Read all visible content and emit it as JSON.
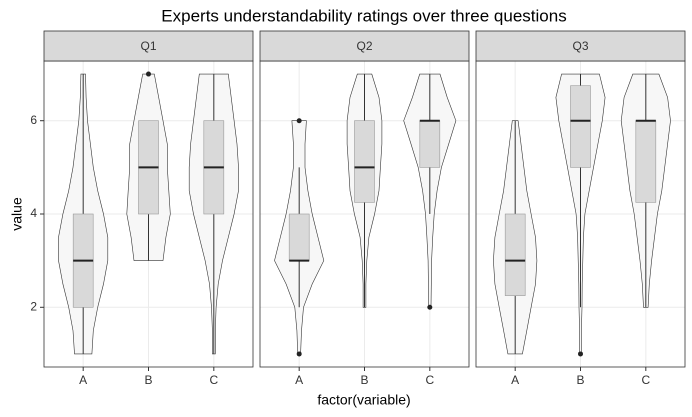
{
  "chart_data": {
    "type": "violin",
    "title": "Experts understandability ratings over three questions",
    "x_label": "factor(variable)",
    "y_label": "value",
    "ylim": [
      0.72,
      7.28
    ],
    "yticks": [
      2,
      4,
      6
    ],
    "grid": true,
    "violin_color": "#f7f7f7",
    "box_color": "#d9d9d9",
    "strip_color": "#d9d9d9",
    "facets": [
      {
        "name": "Q1",
        "categories": [
          "A",
          "B",
          "C"
        ],
        "groups": [
          {
            "min": 1,
            "q1": 2,
            "median": 3,
            "q3": 4,
            "max": 7,
            "outliers": [],
            "violin": {
              "y": [
                1,
                1.5,
                2,
                2.5,
                3,
                3.5,
                4,
                4.5,
                5,
                5.5,
                6,
                6.5,
                7
              ],
              "density": [
                0.3,
                0.35,
                0.5,
                0.7,
                0.85,
                0.85,
                0.7,
                0.5,
                0.35,
                0.25,
                0.15,
                0.1,
                0.08
              ]
            }
          },
          {
            "min": 3,
            "q1": 4,
            "median": 5,
            "q3": 6,
            "max": 6,
            "outliers": [
              7
            ],
            "violin": {
              "y": [
                3,
                3.5,
                4,
                4.5,
                5,
                5.5,
                6,
                6.5,
                7
              ],
              "density": [
                0.5,
                0.6,
                0.75,
                0.7,
                0.65,
                0.65,
                0.5,
                0.35,
                0.2
              ]
            }
          },
          {
            "min": 1,
            "q1": 4,
            "median": 5,
            "q3": 6,
            "max": 7,
            "outliers": [],
            "violin": {
              "y": [
                1,
                1.5,
                2,
                2.5,
                3,
                3.5,
                4,
                4.5,
                5,
                5.5,
                6,
                6.5,
                7
              ],
              "density": [
                0.05,
                0.05,
                0.08,
                0.15,
                0.3,
                0.5,
                0.7,
                0.85,
                0.85,
                0.8,
                0.7,
                0.6,
                0.5
              ]
            }
          }
        ]
      },
      {
        "name": "Q2",
        "categories": [
          "A",
          "B",
          "C"
        ],
        "groups": [
          {
            "min": 2,
            "q1": 3,
            "median": 3,
            "q3": 4,
            "max": 5,
            "outliers": [
              1,
              6
            ],
            "violin": {
              "y": [
                1,
                1.5,
                2,
                2.5,
                3,
                3.5,
                4,
                4.5,
                5,
                5.5,
                6
              ],
              "density": [
                0.05,
                0.08,
                0.15,
                0.45,
                0.85,
                0.65,
                0.45,
                0.3,
                0.2,
                0.2,
                0.25
              ]
            }
          },
          {
            "min": 2,
            "q1": 4.25,
            "median": 5,
            "q3": 6,
            "max": 7,
            "outliers": [],
            "violin": {
              "y": [
                2,
                2.5,
                3,
                3.5,
                4,
                4.5,
                5,
                5.5,
                6,
                6.5,
                7
              ],
              "density": [
                0.05,
                0.05,
                0.08,
                0.15,
                0.35,
                0.5,
                0.55,
                0.6,
                0.6,
                0.5,
                0.25
              ]
            }
          },
          {
            "min": 4,
            "q1": 5,
            "median": 6,
            "q3": 6,
            "max": 7,
            "outliers": [
              2
            ],
            "violin": {
              "y": [
                2,
                2.5,
                3,
                3.5,
                4,
                4.5,
                5,
                5.5,
                6,
                6.5,
                7
              ],
              "density": [
                0.04,
                0.05,
                0.06,
                0.1,
                0.15,
                0.25,
                0.4,
                0.65,
                0.9,
                0.6,
                0.35
              ]
            }
          }
        ]
      },
      {
        "name": "Q3",
        "categories": [
          "A",
          "B",
          "C"
        ],
        "groups": [
          {
            "min": 1,
            "q1": 2.25,
            "median": 3,
            "q3": 4,
            "max": 6,
            "outliers": [],
            "violin": {
              "y": [
                1,
                1.5,
                2,
                2.5,
                3,
                3.5,
                4,
                4.5,
                5,
                5.5,
                6
              ],
              "density": [
                0.25,
                0.4,
                0.55,
                0.7,
                0.75,
                0.7,
                0.55,
                0.4,
                0.3,
                0.2,
                0.1
              ]
            }
          },
          {
            "min": 2,
            "q1": 5,
            "median": 6,
            "q3": 6.75,
            "max": 7,
            "outliers": [
              1
            ],
            "violin": {
              "y": [
                1,
                1.5,
                2,
                2.5,
                3,
                3.5,
                4,
                4.5,
                5,
                5.5,
                6,
                6.5,
                7
              ],
              "density": [
                0.03,
                0.03,
                0.05,
                0.06,
                0.08,
                0.1,
                0.15,
                0.3,
                0.45,
                0.6,
                0.75,
                0.85,
                0.65
              ]
            }
          },
          {
            "min": 2,
            "q1": 4.25,
            "median": 6,
            "q3": 6,
            "max": 7,
            "outliers": [],
            "violin": {
              "y": [
                2,
                2.5,
                3,
                3.5,
                4,
                4.5,
                5,
                5.5,
                6,
                6.5,
                7
              ],
              "density": [
                0.08,
                0.12,
                0.2,
                0.3,
                0.4,
                0.55,
                0.65,
                0.75,
                0.85,
                0.75,
                0.45
              ]
            }
          }
        ]
      }
    ]
  }
}
